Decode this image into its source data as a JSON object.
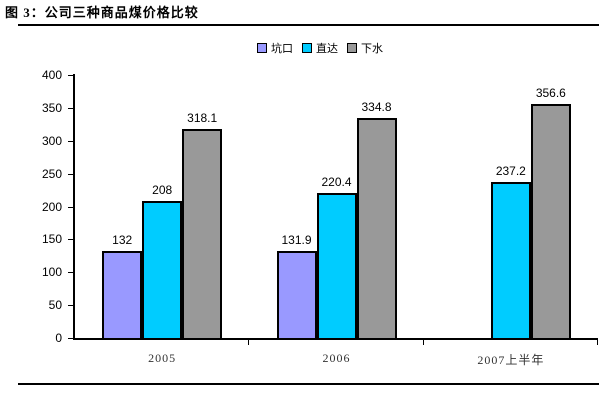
{
  "title": "图 3：公司三种商品煤价格比较",
  "chart_data": {
    "type": "bar",
    "title": "图 3：公司三种商品煤价格比较",
    "categories": [
      "2005",
      "2006",
      "2007上半年"
    ],
    "series": [
      {
        "name": "坑口",
        "color": "#9999FF",
        "values": [
          132,
          131.9,
          null
        ]
      },
      {
        "name": "直达",
        "color": "#00CCFF",
        "values": [
          208,
          220.4,
          237.2
        ]
      },
      {
        "name": "下水",
        "color": "#999999",
        "values": [
          318.1,
          334.8,
          356.6
        ]
      }
    ],
    "ylim": [
      0,
      400
    ],
    "yticks": [
      0,
      50,
      100,
      150,
      200,
      250,
      300,
      350,
      400
    ],
    "xlabel": "",
    "ylabel": "",
    "grid": false,
    "legend_position": "top-center",
    "value_labels_shown": true,
    "colors": {
      "bar_border": "#000000",
      "axis": "#000000",
      "rule": "#000000",
      "background": "#FFFFFF"
    }
  }
}
